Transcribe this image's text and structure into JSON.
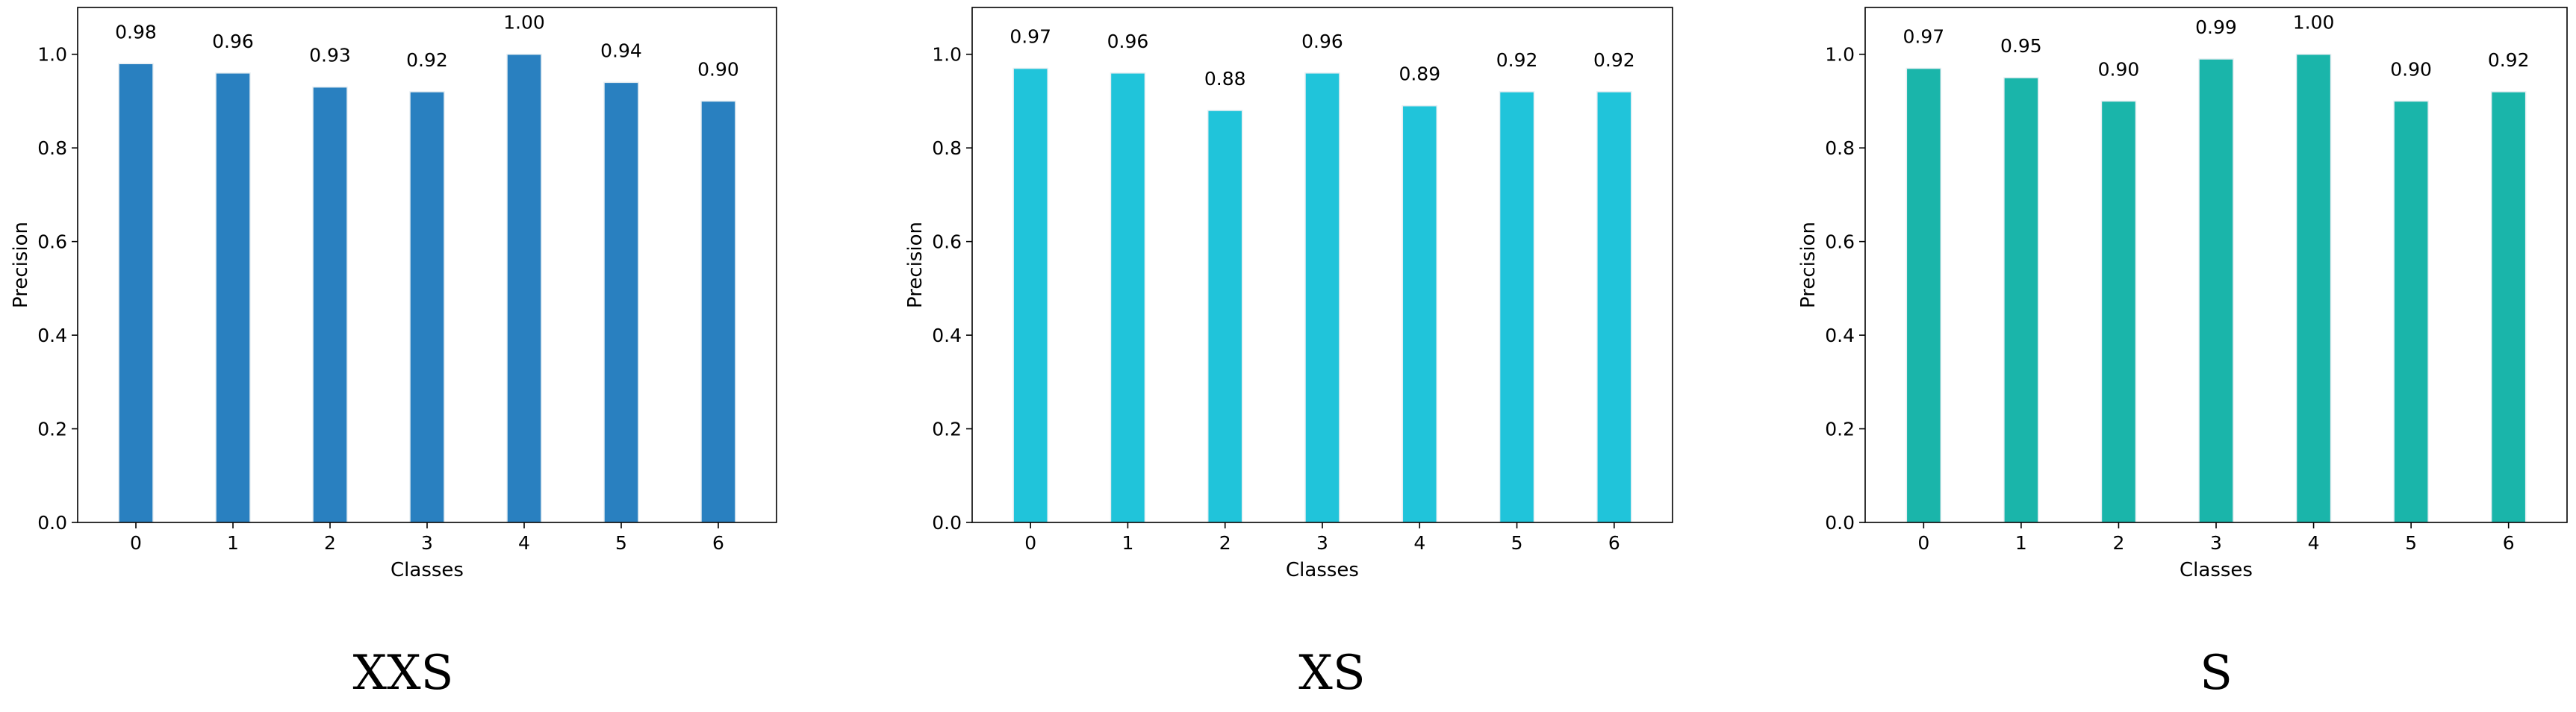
{
  "chart_data": [
    {
      "type": "bar",
      "caption": "XXS",
      "categories": [
        "0",
        "1",
        "2",
        "3",
        "4",
        "5",
        "6"
      ],
      "values": [
        0.98,
        0.96,
        0.93,
        0.92,
        1.0,
        0.94,
        0.9
      ],
      "value_labels": [
        "0.98",
        "0.96",
        "0.93",
        "0.92",
        "1.00",
        "0.94",
        "0.90"
      ],
      "xlabel": "Classes",
      "ylabel": "Precision",
      "ylim": [
        0,
        1.1
      ],
      "yticks": [
        "0.0",
        "0.2",
        "0.4",
        "0.6",
        "0.8",
        "1.0"
      ],
      "color": "#2980c0",
      "grid": false
    },
    {
      "type": "bar",
      "caption": "XS",
      "categories": [
        "0",
        "1",
        "2",
        "3",
        "4",
        "5",
        "6"
      ],
      "values": [
        0.97,
        0.96,
        0.88,
        0.96,
        0.89,
        0.92,
        0.92
      ],
      "value_labels": [
        "0.97",
        "0.96",
        "0.88",
        "0.96",
        "0.89",
        "0.92",
        "0.92"
      ],
      "xlabel": "Classes",
      "ylabel": "Precision",
      "ylim": [
        0,
        1.1
      ],
      "yticks": [
        "0.0",
        "0.2",
        "0.4",
        "0.6",
        "0.8",
        "1.0"
      ],
      "color": "#20c4da",
      "grid": false
    },
    {
      "type": "bar",
      "caption": "S",
      "categories": [
        "0",
        "1",
        "2",
        "3",
        "4",
        "5",
        "6"
      ],
      "values": [
        0.97,
        0.95,
        0.9,
        0.99,
        1.0,
        0.9,
        0.92
      ],
      "value_labels": [
        "0.97",
        "0.95",
        "0.90",
        "0.99",
        "1.00",
        "0.90",
        "0.92"
      ],
      "xlabel": "Classes",
      "ylabel": "Precision",
      "ylim": [
        0,
        1.1
      ],
      "yticks": [
        "0.0",
        "0.2",
        "0.4",
        "0.6",
        "0.8",
        "1.0"
      ],
      "color": "#1ab5aa",
      "grid": false
    }
  ]
}
